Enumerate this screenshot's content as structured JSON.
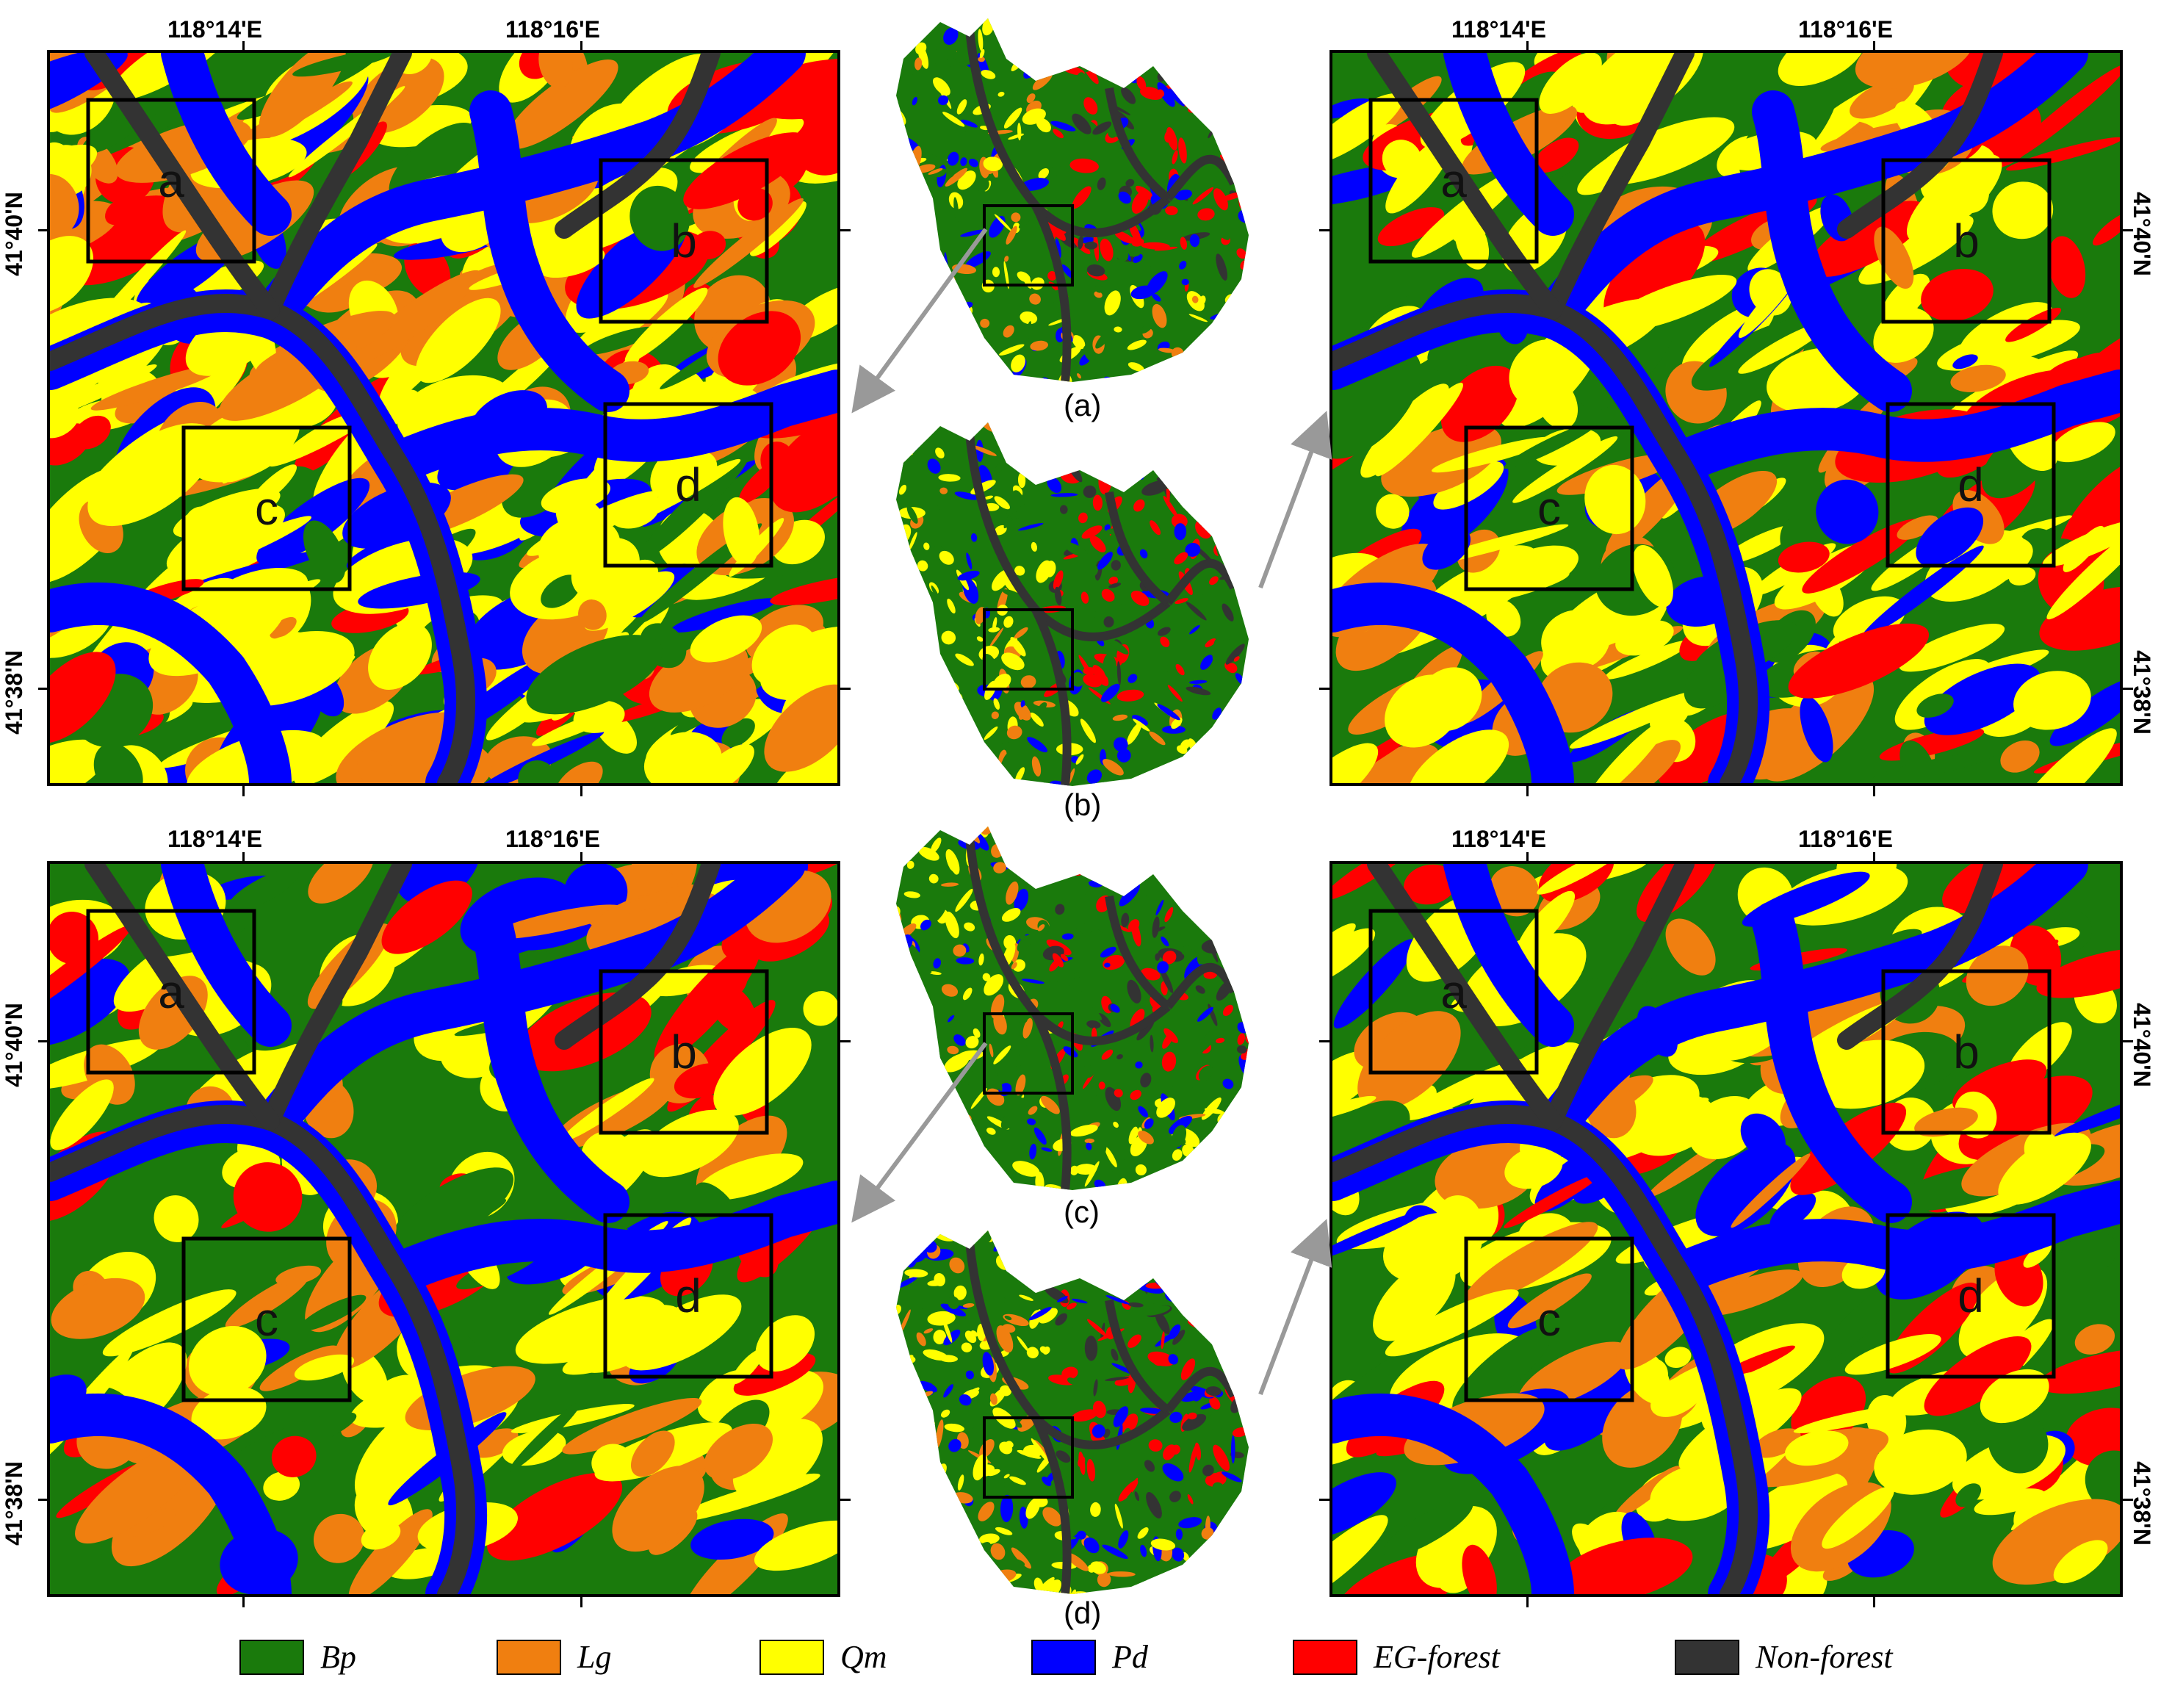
{
  "palette": {
    "Bp": "#1a7a0c",
    "Lg": "#f07f10",
    "Qm": "#ffff00",
    "Pd": "#0000ff",
    "EG": "#ff0000",
    "NF": "#333333"
  },
  "coordinates": {
    "lon_left": "118°14'E",
    "lon_right": "118°16'E",
    "lat_top": "41°40'N",
    "lat_bottom": "41°38'N"
  },
  "box_labels": [
    "a",
    "b",
    "c",
    "d"
  ],
  "captions": [
    "(a)",
    "(b)",
    "(c)",
    "(d)"
  ],
  "legend": [
    {
      "label": "Bp",
      "color": "#1a7a0c"
    },
    {
      "label": "Lg",
      "color": "#f07f10"
    },
    {
      "label": "Qm",
      "color": "#ffff00"
    },
    {
      "label": "Pd",
      "color": "#0000ff"
    },
    {
      "label": "EG-forest",
      "color": "#ff0000"
    },
    {
      "label": "Non-forest",
      "color": "#333333"
    }
  ]
}
